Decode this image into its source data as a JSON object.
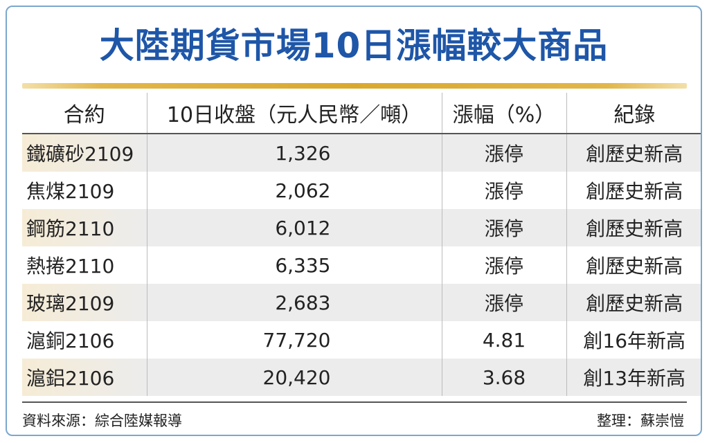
{
  "title": "大陸期貨市場10日漲幅較大商品",
  "table": {
    "headers": [
      "合約",
      "10日收盤（元人民幣／噸）",
      "漲幅（%）",
      "紀錄"
    ],
    "rows": [
      [
        "鐵礦砂2109",
        "1,326",
        "漲停",
        "創歷史新高"
      ],
      [
        "焦煤2109",
        "2,062",
        "漲停",
        "創歷史新高"
      ],
      [
        "鋼筋2110",
        "6,012",
        "漲停",
        "創歷史新高"
      ],
      [
        "熱捲2110",
        "6,335",
        "漲停",
        "創歷史新高"
      ],
      [
        "玻璃2109",
        "2,683",
        "漲停",
        "創歷史新高"
      ],
      [
        "滬銅2106",
        "77,720",
        "4.81",
        "創16年新高"
      ],
      [
        "滬鋁2106",
        "20,420",
        "3.68",
        "創13年新高"
      ]
    ]
  },
  "footer": {
    "source": "資料來源：綜合陸媒報導",
    "editor": "整理：蘇崇愷"
  },
  "colors": {
    "title": "#1e56a8",
    "border": "#7aa7cf",
    "rule_gold": "#d9a92e",
    "row_shade": "#ececec"
  }
}
